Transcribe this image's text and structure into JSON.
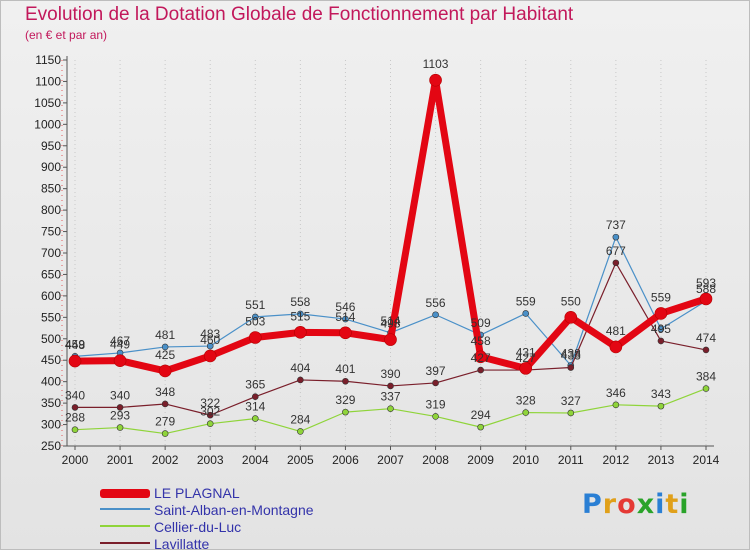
{
  "header": {
    "title": "Evolution de la Dotation Globale de Fonctionnement par Habitant",
    "subtitle": "(en € et par an)"
  },
  "logo": {
    "text": "Proxiti",
    "colors": [
      "#2a7fd4",
      "#e0a01a",
      "#e53935",
      "#29a329",
      "#2a7fd4",
      "#e0a01a",
      "#29a329"
    ]
  },
  "chart_data": {
    "type": "line",
    "title": "Evolution de la Dotation Globale de Fonctionnement par Habitant",
    "subtitle": "(en € et par an)",
    "xlabel": "",
    "ylabel": "",
    "x": [
      "2000",
      "2001",
      "2002",
      "2003",
      "2004",
      "2005",
      "2006",
      "2007",
      "2008",
      "2009",
      "2010",
      "2011",
      "2012",
      "2013",
      "2014"
    ],
    "ylim": [
      250,
      1150
    ],
    "yticks": [
      250,
      300,
      350,
      400,
      450,
      500,
      550,
      600,
      650,
      700,
      750,
      800,
      850,
      900,
      950,
      1000,
      1050,
      1100,
      1150
    ],
    "grid": "vertical-dotted",
    "legend_position": "bottom-left",
    "series": [
      {
        "name": "LE PLAGNAL",
        "color": "#e30613",
        "width": 7,
        "marker_r": 6,
        "values": [
          448,
          449,
          425,
          460,
          503,
          515,
          514,
          498,
          1103,
          458,
          431,
          550,
          481,
          559,
          593
        ],
        "labels": [
          "448",
          "449",
          "425",
          "460",
          "503",
          "515",
          "514",
          "498",
          "1103",
          "458",
          "431",
          "550",
          "481",
          "559",
          "593"
        ]
      },
      {
        "name": "Saint-Alban-en-Montagne",
        "color": "#4a90c8",
        "width": 1.2,
        "marker_r": 3,
        "values": [
          459,
          467,
          481,
          483,
          551,
          558,
          546,
          514,
          556,
          509,
          559,
          438,
          737,
          523,
          588
        ],
        "labels": [
          "459",
          "467",
          "481",
          "483",
          "551",
          "558",
          "546",
          "514",
          "556",
          "509",
          "559",
          "438",
          "737",
          "",
          "588"
        ]
      },
      {
        "name": "Cellier-du-Luc",
        "color": "#8fd43a",
        "width": 1.2,
        "marker_r": 3,
        "values": [
          288,
          293,
          279,
          302,
          314,
          284,
          329,
          337,
          319,
          294,
          328,
          327,
          346,
          343,
          384
        ],
        "labels": [
          "288",
          "293",
          "279",
          "302",
          "314",
          "284",
          "329",
          "337",
          "319",
          "294",
          "328",
          "327",
          "346",
          "343",
          "384"
        ]
      },
      {
        "name": "Lavillatte",
        "color": "#7a1f2b",
        "width": 1.2,
        "marker_r": 3,
        "values": [
          340,
          340,
          348,
          322,
          365,
          404,
          401,
          390,
          397,
          427,
          427,
          433,
          677,
          495,
          474
        ],
        "labels": [
          "340",
          "340",
          "348",
          "322",
          "365",
          "404",
          "401",
          "390",
          "397",
          "427",
          "427",
          "433",
          "677",
          "495",
          "474"
        ]
      }
    ]
  }
}
